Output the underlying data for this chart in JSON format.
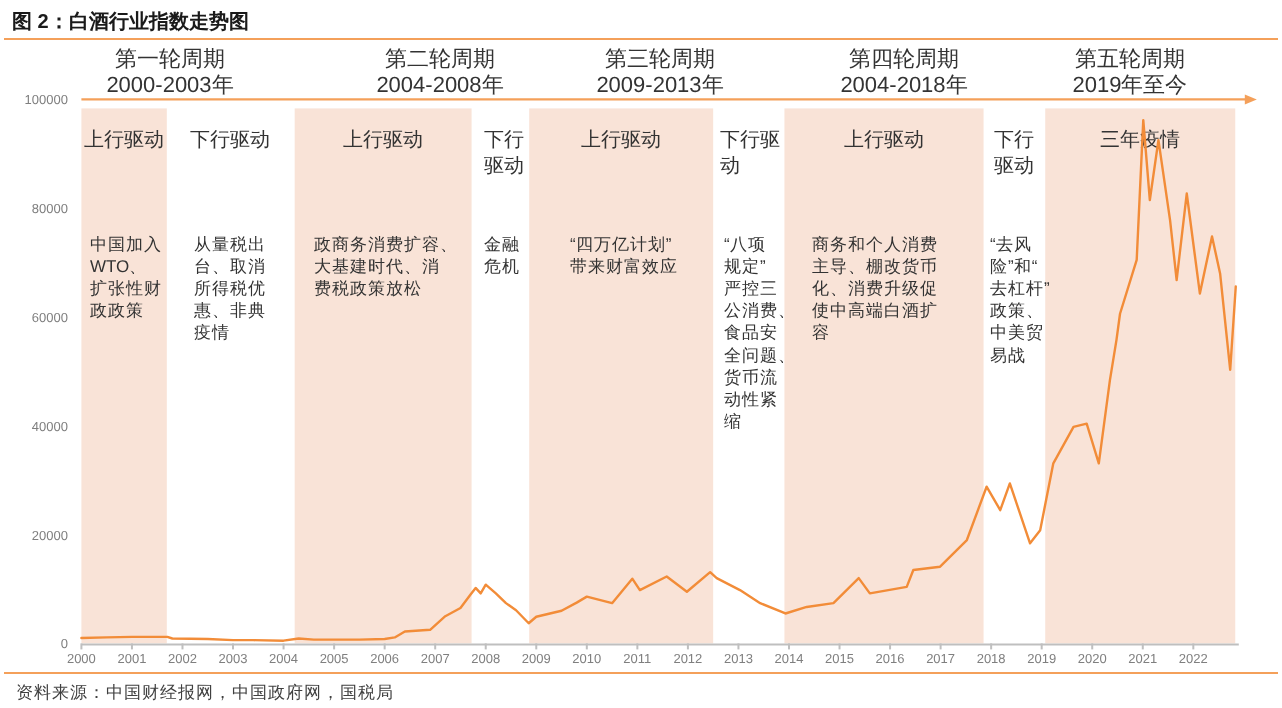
{
  "chart_data": {
    "type": "line",
    "title": "图 2：白酒行业指数走势图",
    "x": [
      2000.0,
      2000.5,
      2001.0,
      2001.7,
      2001.8,
      2002.5,
      2003.0,
      2003.4,
      2004.0,
      2004.3,
      2004.6,
      2005.5,
      2006.0,
      2006.2,
      2006.4,
      2006.9,
      2007.2,
      2007.5,
      2007.7,
      2007.8,
      2007.9,
      2008.0,
      2008.2,
      2008.4,
      2008.6,
      2008.85,
      2009.0,
      2009.5,
      2009.8,
      2010.0,
      2010.5,
      2010.9,
      2011.05,
      2011.58,
      2011.98,
      2012.44,
      2012.57,
      2013.03,
      2013.43,
      2013.93,
      2014.35,
      2014.88,
      2015.38,
      2015.6,
      2016.33,
      2016.46,
      2016.99,
      2017.52,
      2017.91,
      2018.18,
      2018.37,
      2018.57,
      2018.77,
      2018.97,
      2019.23,
      2019.63,
      2019.89,
      2020.13,
      2020.35,
      2020.48,
      2020.55,
      2020.88,
      2021.01,
      2021.14,
      2021.31,
      2021.54,
      2021.67,
      2021.87,
      2022.13,
      2022.37,
      2022.53,
      2022.73,
      2022.84
    ],
    "series": [
      {
        "color": "#f28c38",
        "values": [
          1000,
          1100,
          1200,
          1200,
          900,
          800,
          600,
          600,
          500,
          900,
          700,
          700,
          800,
          1100,
          2200,
          2500,
          5000,
          6500,
          9000,
          10200,
          9200,
          10800,
          9200,
          7400,
          6100,
          3700,
          4900,
          6000,
          7500,
          8600,
          7400,
          11900,
          9800,
          12300,
          9500,
          13100,
          12000,
          9800,
          7400,
          5500,
          6700,
          7400,
          12000,
          9200,
          10400,
          13500,
          14100,
          19000,
          28800,
          24500,
          29400,
          23900,
          18400,
          20800,
          33100,
          39800,
          40400,
          33100,
          48400,
          55800,
          60600,
          70500,
          96200,
          81500,
          92500,
          77800,
          66800,
          82700,
          64300,
          74800,
          68000,
          50300,
          65600
        ]
      }
    ],
    "xlim": [
      2000,
      2022.9
    ],
    "ylim": [
      0,
      100000
    ],
    "xticks": [
      2000,
      2001,
      2002,
      2003,
      2004,
      2005,
      2006,
      2007,
      2008,
      2009,
      2010,
      2011,
      2012,
      2013,
      2014,
      2015,
      2016,
      2017,
      2018,
      2019,
      2020,
      2021,
      2022
    ],
    "yticks": [
      0,
      20000,
      40000,
      60000,
      80000,
      100000
    ],
    "ref_lines": [
      {
        "axis": "y",
        "value": 100000,
        "color": "#f4a05a"
      }
    ],
    "bands": [
      {
        "axis": "x",
        "from": 2000.0,
        "to": 2001.69,
        "label": "上行驱动",
        "color": "#f9e3d7"
      },
      {
        "axis": "x",
        "from": 2004.22,
        "to": 2007.72,
        "label": "上行驱动",
        "color": "#f9e3d7"
      },
      {
        "axis": "x",
        "from": 2008.86,
        "to": 2012.5,
        "label": "上行驱动",
        "color": "#f9e3d7"
      },
      {
        "axis": "x",
        "from": 2013.91,
        "to": 2017.85,
        "label": "上行驱动",
        "color": "#f9e3d7"
      },
      {
        "axis": "x",
        "from": 2019.07,
        "to": 2022.83,
        "label": "三年疫情",
        "color": "#f9e3d7"
      }
    ],
    "annotations": [
      "第一轮周期",
      "第二轮周期",
      "第三轮周期",
      "第四轮周期",
      "第五轮周期",
      "2000-2003年",
      "2004-2008年",
      "2009-2013年",
      "2004-2018年",
      "2019年至今",
      "下行驱动",
      "下行驱动",
      "下行驱动",
      "下行驱动",
      "中国加入WTO、扩张性财政政策",
      "从量税出台、取消所得税优惠、非典疫情",
      "政商务消费扩容、大基建时代、消费税政策放松",
      "金融危机",
      "“四万亿计划”带来财富效应",
      "“八项规定”严控三公消费、食品安全问题、货币流动性紧缩",
      "商务和个人消费主导、棚改货币化、消费升级促使中高端白酒扩容",
      "“去风险”和“去杠杆”政策、中美贸易战",
      "资料来源：中国财经报网，中国政府网，国税局"
    ]
  }
}
